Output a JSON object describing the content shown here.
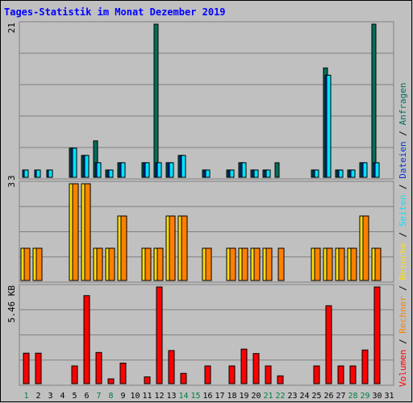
{
  "chart_data": {
    "type": "bar",
    "title": "Tages-Statistik im Monat Dezember 2019",
    "x": {
      "labels": [
        "1",
        "2",
        "3",
        "4",
        "5",
        "6",
        "7",
        "8",
        "9",
        "10",
        "11",
        "12",
        "13",
        "14",
        "15",
        "16",
        "17",
        "18",
        "19",
        "20",
        "21",
        "22",
        "23",
        "24",
        "25",
        "26",
        "27",
        "28",
        "29",
        "30",
        "31"
      ],
      "weekend_days": [
        "1",
        "7",
        "8",
        "14",
        "15",
        "21",
        "22",
        "28",
        "29"
      ]
    },
    "panels": [
      {
        "id": "hits",
        "ymax_label": "21",
        "ymin_label": "3",
        "ylim": [
          0,
          21
        ],
        "series": [
          {
            "name": "Anfragen",
            "color": "#006f5b",
            "values": [
              0,
              0,
              0,
              0,
              4,
              3,
              5,
              1,
              2,
              0,
              2,
              21,
              2,
              3,
              0,
              1,
              0,
              1,
              2,
              1,
              1,
              2,
              0,
              0,
              1,
              15,
              1,
              1,
              2,
              21,
              0
            ]
          },
          {
            "name": "Dateien",
            "color": "#0034d2",
            "values": [
              1,
              1,
              1,
              0,
              4,
              3,
              2,
              1,
              2,
              0,
              2,
              2,
              2,
              3,
              0,
              1,
              0,
              1,
              2,
              1,
              1,
              0,
              0,
              0,
              1,
              14,
              1,
              1,
              2,
              2,
              0
            ]
          },
          {
            "name": "Seiten",
            "color": "#00e5ff",
            "values": [
              1,
              1,
              1,
              0,
              4,
              3,
              2,
              1,
              2,
              0,
              2,
              2,
              2,
              3,
              0,
              1,
              0,
              1,
              2,
              1,
              1,
              0,
              0,
              0,
              1,
              14,
              1,
              1,
              2,
              2,
              0
            ]
          }
        ]
      },
      {
        "id": "visits",
        "ymax_label": "3",
        "ylim": [
          0,
          3
        ],
        "series": [
          {
            "name": "Besuche",
            "color": "#ffe000",
            "values": [
              1,
              1,
              0,
              0,
              3,
              3,
              1,
              1,
              2,
              0,
              1,
              1,
              2,
              2,
              0,
              1,
              0,
              1,
              1,
              1,
              1,
              0,
              0,
              0,
              1,
              1,
              1,
              1,
              2,
              1,
              0
            ]
          },
          {
            "name": "Rechner",
            "color": "#ff8000",
            "values": [
              1,
              1,
              0,
              0,
              3,
              3,
              1,
              1,
              2,
              0,
              1,
              1,
              2,
              2,
              0,
              1,
              0,
              1,
              1,
              1,
              1,
              1,
              0,
              0,
              1,
              1,
              1,
              1,
              2,
              1,
              0
            ]
          }
        ]
      },
      {
        "id": "volume",
        "ymax_label": "5.46 KB",
        "ylim": [
          0,
          5.46
        ],
        "series": [
          {
            "name": "Volumen",
            "color": "#ff0000",
            "values": [
              1.72,
              1.72,
              0,
              0,
              1,
              4.97,
              1.76,
              0.27,
              1.16,
              0,
              0.38,
              5.46,
              1.87,
              0.58,
              0,
              1,
              0,
              1,
              1.95,
              1.7,
              1,
              0.44,
              0,
              0,
              1,
              4.4,
              1,
              1,
              1.9,
              5.46,
              0
            ]
          }
        ]
      }
    ],
    "legend": [
      "Volumen",
      "/",
      "Rechner",
      "/",
      "Besuche",
      "/",
      "Seiten",
      "/",
      "Dateien",
      "/",
      "Anfragen"
    ],
    "legend_colors": [
      "#ff0000",
      "#000000",
      "#ff8000",
      "#000000",
      "#ffe000",
      "#000000",
      "#00e5ff",
      "#000000",
      "#0034d2",
      "#000000",
      "#006f5b"
    ],
    "colors": {
      "background": "#c0c0c0",
      "frame": "#808080",
      "title": "#0000ff",
      "weekend_label": "#008040",
      "weekday_label": "#000000"
    }
  }
}
